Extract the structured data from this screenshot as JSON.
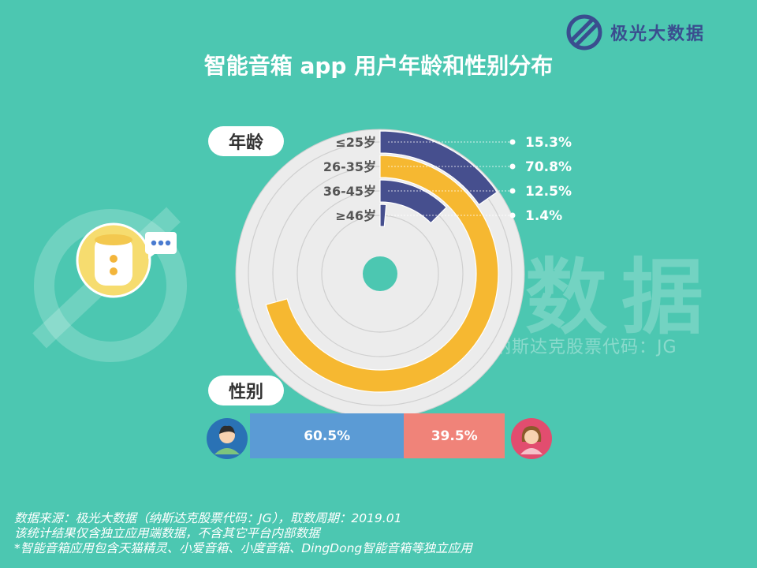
{
  "brand": {
    "name": "极光大数据"
  },
  "title": "智能音箱 app 用户年龄和性别分布",
  "sections": {
    "age": "年龄",
    "gender": "性别"
  },
  "watermark": {
    "main": "极光大数据",
    "sub": "纳斯达克股票代码：JG"
  },
  "colors": {
    "background": "#4cc7b1",
    "navy": "#464f8e",
    "gold": "#f6b831",
    "track": "#ececec",
    "male": "#5b9bd5",
    "female": "#f08379"
  },
  "chart_data": [
    {
      "type": "radial-bar",
      "categories": [
        "≤25岁",
        "26-35岁",
        "36-45岁",
        "≥46岁"
      ],
      "values": [
        15.3,
        70.8,
        12.5,
        1.4
      ],
      "value_labels": [
        "15.3%",
        "70.8%",
        "12.5%",
        "1.4%"
      ],
      "unit": "%",
      "series_colors": [
        "#464f8e",
        "#f6b831",
        "#464f8e",
        "#464f8e"
      ]
    },
    {
      "type": "stacked-bar",
      "categories": [
        "male",
        "female"
      ],
      "values": [
        60.5,
        39.5
      ],
      "value_labels": [
        "60.5%",
        "39.5%"
      ],
      "unit": "%",
      "series_colors": [
        "#5b9bd5",
        "#f08379"
      ]
    }
  ],
  "footer": {
    "line1": "数据来源：极光大数据（纳斯达克股票代码：JG），取数周期：2019.01",
    "line2": "该统计结果仅含独立应用端数据，不含其它平台内部数据",
    "line3": "*智能音箱应用包含天猫精灵、小爱音箱、小度音箱、DingDong智能音箱等独立应用"
  }
}
